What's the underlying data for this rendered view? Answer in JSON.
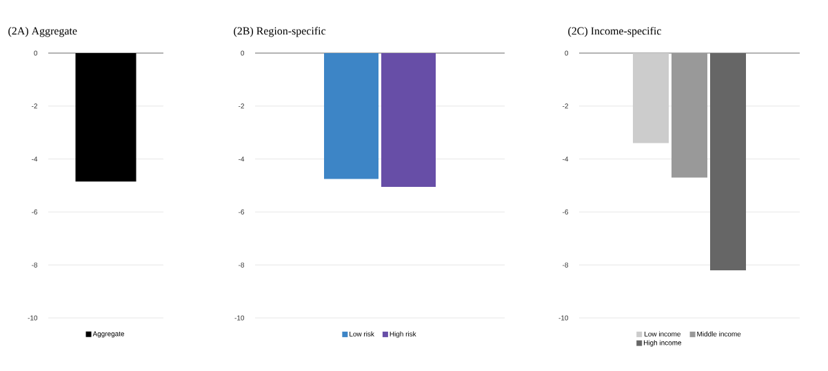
{
  "chart_data": [
    {
      "type": "bar",
      "title": "(2A) Aggregate",
      "categories": [
        null
      ],
      "series": [
        {
          "name": "Aggregate",
          "color": "#000000",
          "values": [
            -4.85
          ]
        }
      ],
      "ylim": [
        -10,
        0
      ],
      "yticks": [
        0,
        -2,
        -4,
        -6,
        -8,
        -10
      ],
      "grid": "y",
      "legend": "bottom",
      "tick_labels": "y"
    },
    {
      "type": "bar",
      "title": "(2B) Region-specific",
      "categories": [
        null
      ],
      "series": [
        {
          "name": "Low risk",
          "color": "#3d85c6",
          "values": [
            -4.75
          ]
        },
        {
          "name": "High risk",
          "color": "#674ea7",
          "values": [
            -5.05
          ]
        }
      ],
      "ylim": [
        -10,
        0
      ],
      "yticks": [
        0,
        -2,
        -4,
        -6,
        -8,
        -10
      ],
      "grid": "y",
      "legend": "bottom",
      "tick_labels": "y"
    },
    {
      "type": "bar",
      "title": "(2C) Income-specific",
      "categories": [
        null
      ],
      "series": [
        {
          "name": "Low income",
          "color": "#cccccc",
          "values": [
            -3.4
          ]
        },
        {
          "name": "Middle income",
          "color": "#999999",
          "values": [
            -4.7
          ]
        },
        {
          "name": "High income",
          "color": "#666666",
          "values": [
            -8.2
          ]
        }
      ],
      "ylim": [
        -10,
        0
      ],
      "yticks": [
        0,
        -2,
        -4,
        -6,
        -8,
        -10
      ],
      "grid": "y",
      "legend": "bottom",
      "tick_labels": "y"
    }
  ]
}
